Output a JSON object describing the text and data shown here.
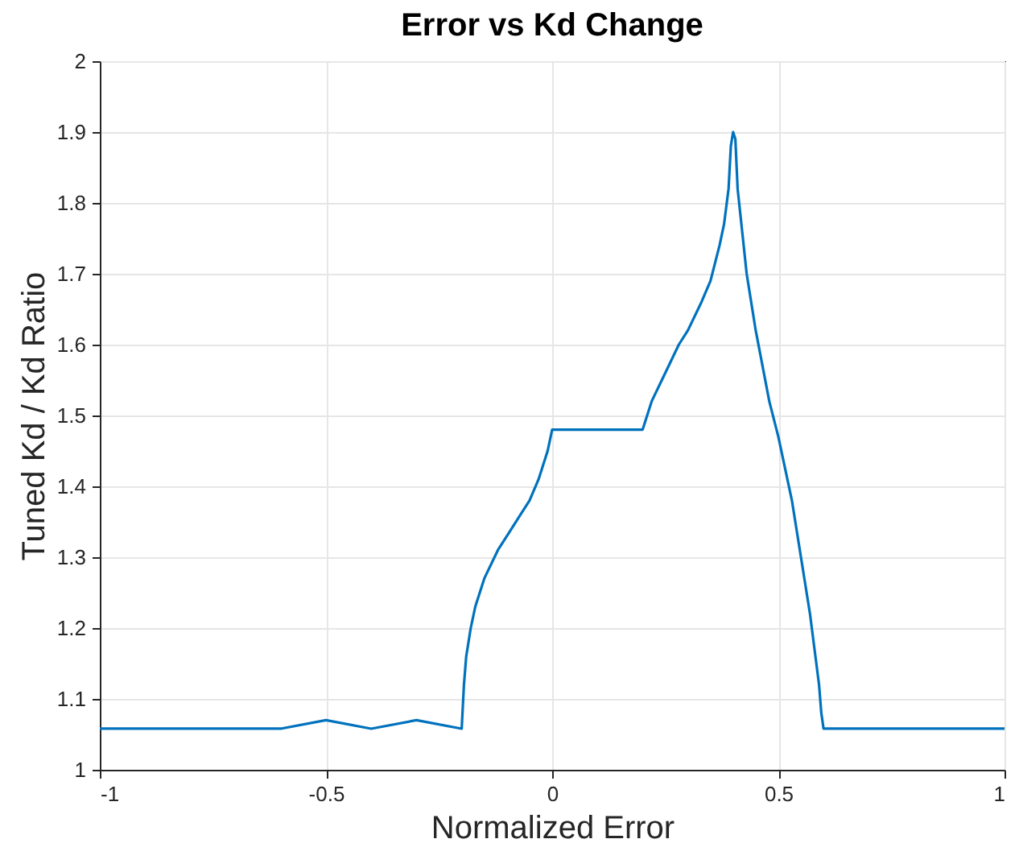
{
  "chart_data": {
    "type": "line",
    "title": "Error vs Kd Change",
    "xlabel": "Normalized Error",
    "ylabel": "Tuned Kd / Kd Ratio",
    "x": [
      -1,
      -0.6,
      -0.5,
      -0.4,
      -0.3,
      -0.2,
      -0.195,
      -0.19,
      -0.18,
      -0.17,
      -0.15,
      -0.12,
      -0.1,
      -0.07,
      -0.05,
      -0.03,
      -0.01,
      0,
      0.2,
      0.21,
      0.22,
      0.25,
      0.28,
      0.3,
      0.33,
      0.35,
      0.37,
      0.38,
      0.39,
      0.395,
      0.4,
      0.405,
      0.41,
      0.42,
      0.43,
      0.45,
      0.48,
      0.5,
      0.53,
      0.55,
      0.57,
      0.58,
      0.59,
      0.595,
      0.6,
      1
    ],
    "series": [
      {
        "color": "#0072bd",
        "values": [
          1.058,
          1.058,
          1.07,
          1.058,
          1.07,
          1.058,
          1.12,
          1.16,
          1.2,
          1.23,
          1.27,
          1.31,
          1.33,
          1.36,
          1.38,
          1.41,
          1.45,
          1.48,
          1.48,
          1.5,
          1.52,
          1.56,
          1.6,
          1.62,
          1.66,
          1.69,
          1.74,
          1.77,
          1.82,
          1.88,
          1.9,
          1.89,
          1.82,
          1.76,
          1.7,
          1.62,
          1.52,
          1.47,
          1.38,
          1.3,
          1.22,
          1.17,
          1.12,
          1.08,
          1.058,
          1.058
        ]
      }
    ],
    "xlim": [
      -1,
      1
    ],
    "xticks": [
      -1,
      -0.5,
      0,
      0.5,
      1
    ],
    "ylim": [
      1,
      2
    ],
    "yticks": [
      1,
      1.1,
      1.2,
      1.3,
      1.4,
      1.5,
      1.6,
      1.7,
      1.8,
      1.9,
      2
    ],
    "grid": true
  }
}
